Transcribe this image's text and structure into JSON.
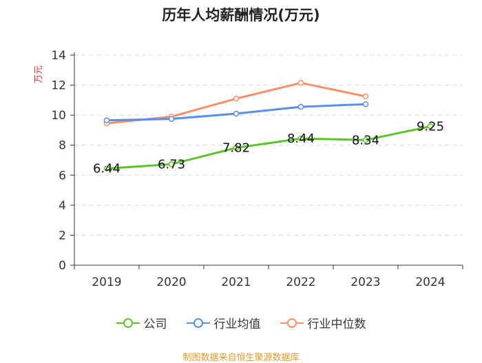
{
  "chart_data": {
    "type": "line",
    "title": "历年人均薪酬情况(万元)",
    "ylabel": "万元",
    "xlabel": "",
    "categories": [
      "2019",
      "2020",
      "2021",
      "2022",
      "2023",
      "2024"
    ],
    "ylim": [
      0,
      14
    ],
    "yticks": [
      0,
      2,
      4,
      6,
      8,
      10,
      12,
      14
    ],
    "series": [
      {
        "name": "公司",
        "color": "#5cc42a",
        "values": [
          6.44,
          6.73,
          7.82,
          8.44,
          8.34,
          9.25
        ],
        "labels": [
          "6.44",
          "6.73",
          "7.82",
          "8.44",
          "8.34",
          "9.25"
        ]
      },
      {
        "name": "行业均值",
        "color": "#5b8ee6",
        "values": [
          9.65,
          9.75,
          10.1,
          10.55,
          10.73,
          null
        ]
      },
      {
        "name": "行业中位数",
        "color": "#f79069",
        "values": [
          9.45,
          9.9,
          11.1,
          12.15,
          11.25,
          null
        ]
      }
    ],
    "legend_position": "bottom",
    "grid": true
  },
  "source_text": "制图数据来自恒生聚源数据库"
}
